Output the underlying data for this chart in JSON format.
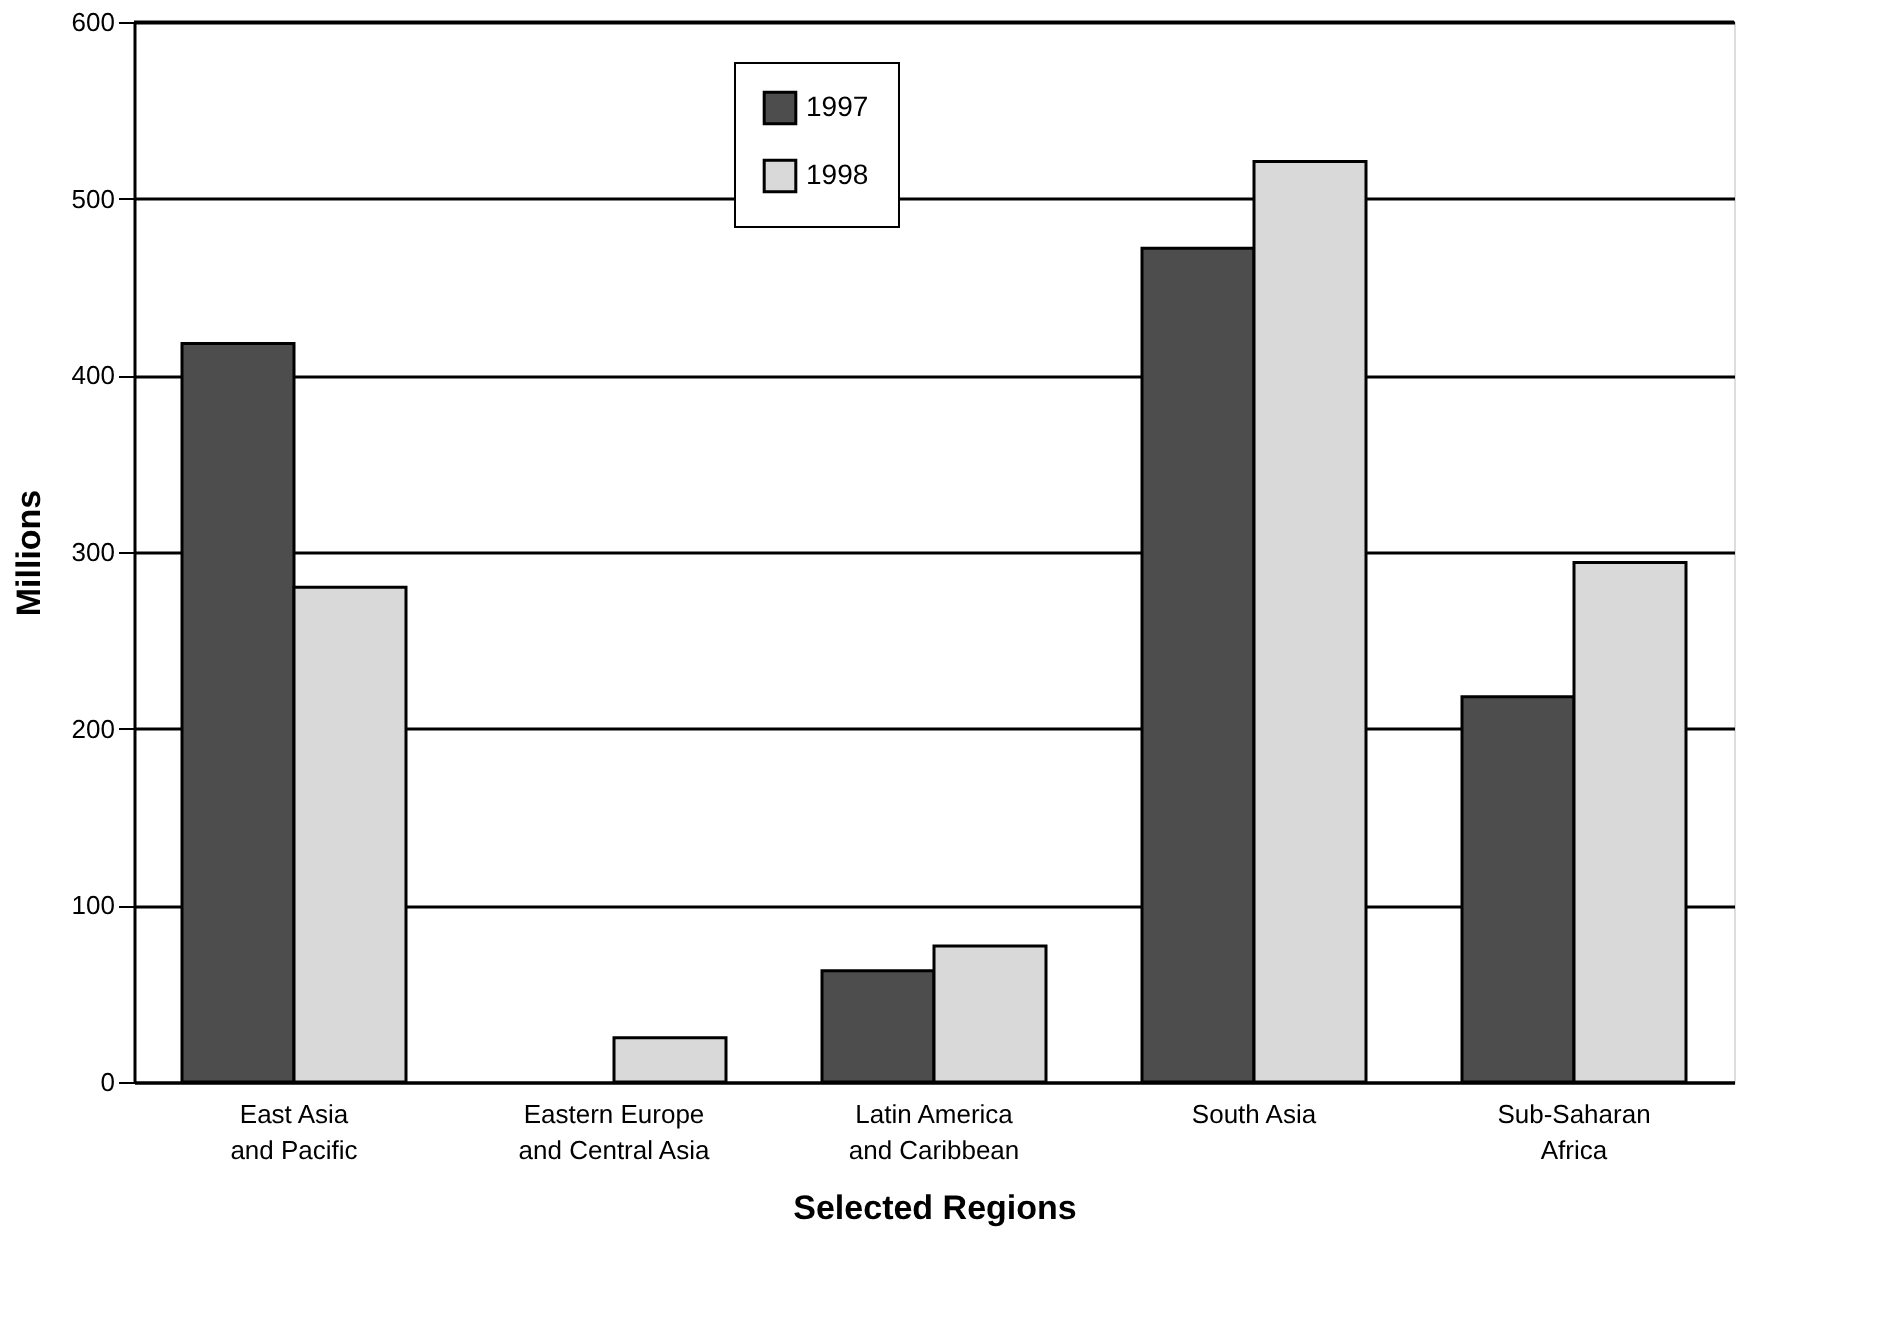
{
  "chart_data": {
    "type": "bar",
    "xlabel": "Selected Regions",
    "ylabel": "Millions",
    "categories": [
      "East Asia\nand Pacific",
      "Eastern Europe\nand Central Asia",
      "Latin America\nand Caribbean",
      "South Asia",
      "Sub-Saharan\nAfrica"
    ],
    "series": [
      {
        "name": "1997",
        "color": "#4d4d4d",
        "values": [
          418,
          null,
          63,
          472,
          218
        ]
      },
      {
        "name": "1998",
        "color": "#d9d9d9",
        "values": [
          280,
          25,
          77,
          521,
          294
        ]
      }
    ],
    "ylim": [
      0,
      600
    ],
    "yticks": [
      0,
      100,
      200,
      300,
      400,
      500,
      600
    ],
    "grid": "y",
    "legend": "top"
  }
}
